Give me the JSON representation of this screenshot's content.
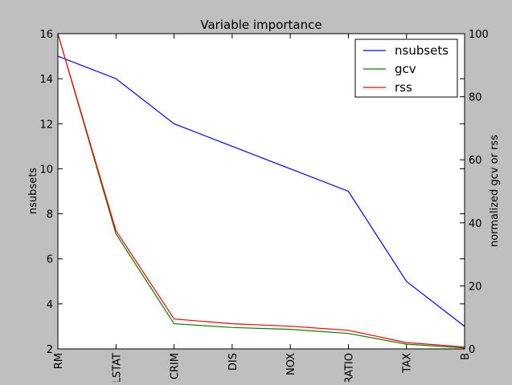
{
  "chart_data": {
    "type": "line",
    "title": "Variable importance",
    "xlabel": "",
    "ylabel": "nsubsets",
    "y2label": "normalized gcv or rss",
    "categories": [
      "RM",
      "LSTAT",
      "CRIM",
      "DIS",
      "NOX",
      "PTRATIO",
      "TAX",
      "B"
    ],
    "ylim": [
      2,
      16
    ],
    "y2lim": [
      0,
      100
    ],
    "yticks": [
      2,
      4,
      6,
      8,
      10,
      12,
      14,
      16
    ],
    "y2ticks": [
      0,
      20,
      40,
      60,
      80,
      100
    ],
    "grid": false,
    "legend_position": "top-right",
    "series": [
      {
        "name": "nsubsets",
        "axis": "left",
        "color": "#0000ff",
        "values": [
          15,
          14,
          12,
          11,
          10,
          9,
          5,
          3
        ]
      },
      {
        "name": "gcv",
        "axis": "right",
        "color": "#008000",
        "values": [
          100,
          36.5,
          8,
          6.8,
          6.2,
          4.9,
          1.5,
          0.3
        ]
      },
      {
        "name": "rss",
        "axis": "right",
        "color": "#ff0000",
        "values": [
          100,
          37.5,
          9.5,
          8,
          7.2,
          5.9,
          2,
          0.6
        ]
      }
    ]
  }
}
